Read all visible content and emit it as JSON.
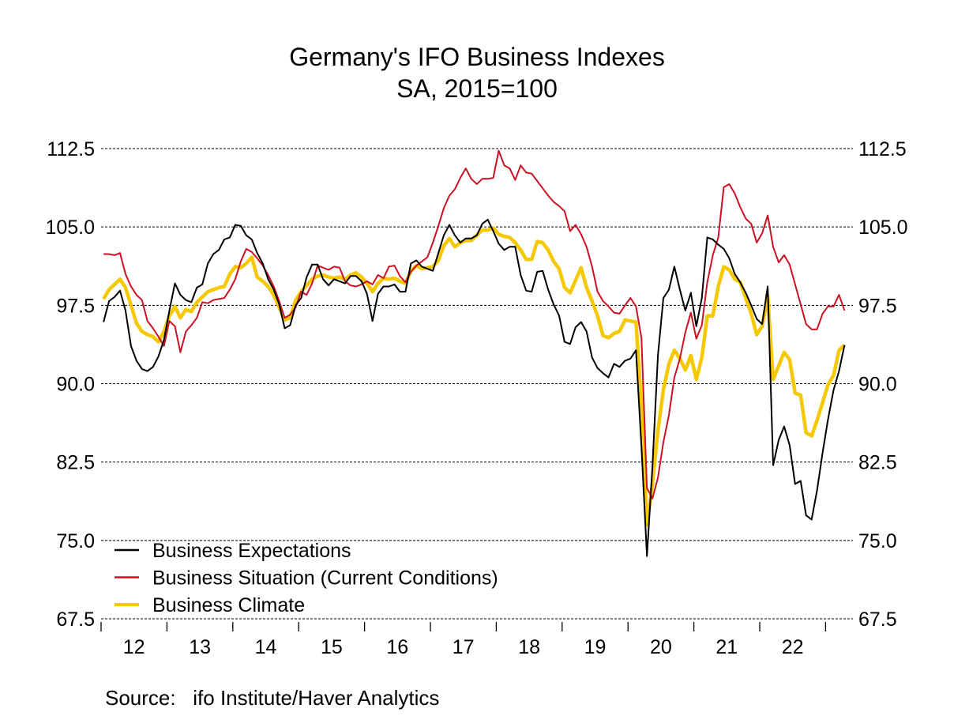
{
  "chart_data": {
    "type": "line",
    "title": "Germany's IFO Business Indexes",
    "subtitle": "SA, 2015=100",
    "xlabel": "",
    "ylabel": "",
    "x_start": "2012-01",
    "x_end": "2023-04",
    "frequency": "monthly",
    "x_tick_labels": [
      "12",
      "13",
      "14",
      "15",
      "16",
      "17",
      "18",
      "19",
      "20",
      "21",
      "22"
    ],
    "ylim": [
      67.5,
      112.5
    ],
    "y_ticks": [
      67.5,
      75.0,
      82.5,
      90.0,
      97.5,
      105.0,
      112.5
    ],
    "y_tick_labels": [
      "67.5",
      "75.0",
      "82.5",
      "90.0",
      "97.5",
      "105.0",
      "112.5"
    ],
    "grid": true,
    "legend_position": "bottom-left",
    "series": [
      {
        "name": "Business Expectations",
        "color": "#000000",
        "values": [
          95.9,
          97.9,
          98.3,
          98.9,
          97.0,
          93.6,
          92.2,
          91.4,
          91.2,
          91.6,
          92.6,
          94.2,
          97.0,
          99.6,
          98.5,
          98.0,
          97.8,
          99.2,
          99.5,
          101.5,
          102.4,
          102.8,
          103.8,
          104.0,
          105.2,
          105.1,
          104.2,
          103.8,
          102.5,
          101.5,
          100.0,
          99.0,
          97.6,
          95.3,
          95.6,
          97.5,
          98.2,
          100.2,
          101.4,
          101.4,
          100.0,
          99.4,
          100.0,
          99.8,
          99.6,
          100.3,
          100.3,
          99.8,
          98.6,
          96.0,
          98.6,
          99.3,
          99.3,
          99.5,
          98.8,
          98.8,
          101.5,
          101.8,
          101.2,
          101.0,
          100.8,
          102.5,
          104.2,
          105.2,
          104.2,
          103.5,
          103.9,
          103.9,
          104.2,
          105.3,
          105.7,
          104.6,
          103.4,
          102.8,
          103.1,
          103.1,
          100.4,
          98.9,
          98.8,
          100.7,
          100.8,
          99.0,
          97.6,
          96.5,
          94.0,
          93.8,
          95.4,
          95.9,
          95.0,
          92.5,
          91.5,
          91.0,
          90.6,
          91.9,
          91.6,
          92.2,
          92.4,
          93.2,
          84.0,
          73.5,
          82.0,
          92.7,
          98.2,
          99.0,
          101.2,
          99.0,
          97.0,
          98.7,
          95.5,
          98.2,
          104.0,
          103.8,
          103.3,
          102.9,
          102.0,
          100.5,
          99.7,
          98.7,
          97.5,
          96.2,
          95.7,
          99.3,
          82.2,
          84.6,
          85.9,
          84.1,
          80.4,
          80.7,
          77.4,
          77.0,
          79.8,
          83.4,
          86.6,
          89.4,
          91.2,
          93.7
        ]
      },
      {
        "name": "Business Situation (Current Conditions)",
        "color": "#cc1122",
        "values": [
          102.4,
          102.4,
          102.3,
          102.5,
          100.5,
          99.3,
          98.5,
          98.0,
          96.0,
          95.3,
          94.5,
          93.6,
          96.0,
          95.5,
          93.0,
          95.0,
          95.6,
          96.3,
          97.8,
          97.7,
          98.0,
          98.1,
          98.2,
          99.0,
          100.0,
          101.7,
          102.9,
          102.6,
          102.0,
          101.3,
          100.4,
          99.3,
          97.9,
          96.3,
          96.6,
          97.3,
          98.8,
          98.5,
          99.6,
          101.3,
          101.1,
          100.9,
          101.2,
          101.1,
          99.8,
          99.4,
          99.3,
          99.5,
          99.8,
          99.5,
          100.4,
          100.1,
          101.2,
          101.3,
          100.3,
          99.7,
          100.7,
          101.3,
          101.7,
          102.1,
          103.5,
          105.1,
          106.8,
          108.0,
          108.6,
          109.7,
          110.6,
          109.6,
          109.1,
          109.6,
          109.6,
          109.7,
          112.3,
          110.9,
          110.6,
          109.5,
          110.9,
          110.2,
          110.1,
          109.4,
          108.7,
          108.0,
          107.4,
          107.0,
          106.5,
          104.6,
          105.2,
          104.3,
          103.1,
          101.2,
          98.8,
          97.9,
          97.4,
          96.8,
          96.7,
          97.5,
          98.2,
          97.4,
          94.4,
          80.0,
          79.0,
          81.0,
          84.4,
          87.0,
          90.6,
          92.4,
          94.9,
          96.8,
          94.3,
          95.6,
          99.7,
          102.3,
          104.0,
          108.8,
          109.1,
          108.2,
          106.9,
          105.8,
          105.3,
          103.5,
          104.4,
          106.1,
          103.1,
          101.6,
          102.3,
          101.4,
          99.5,
          97.6,
          95.7,
          95.2,
          95.2,
          96.7,
          97.4,
          97.4,
          98.5,
          97.0
        ]
      },
      {
        "name": "Business Climate",
        "color": "#f5c800",
        "values": [
          98.1,
          99.0,
          99.5,
          100.0,
          99.2,
          97.5,
          95.8,
          95.0,
          94.7,
          94.5,
          94.0,
          95.0,
          96.5,
          97.4,
          96.3,
          97.1,
          96.9,
          97.8,
          98.3,
          98.8,
          99.0,
          99.2,
          99.3,
          100.5,
          101.2,
          101.1,
          101.5,
          102.1,
          100.2,
          99.8,
          99.3,
          98.5,
          97.3,
          96.1,
          96.3,
          98.0,
          98.8,
          99.4,
          100.0,
          100.3,
          100.4,
          100.2,
          100.1,
          100.2,
          100.0,
          100.4,
          100.6,
          100.2,
          99.6,
          98.8,
          99.6,
          100.1,
          100.0,
          100.1,
          99.8,
          99.6,
          100.8,
          101.3,
          101.0,
          101.1,
          101.2,
          101.8,
          103.2,
          103.9,
          103.1,
          103.5,
          103.7,
          103.7,
          104.2,
          104.7,
          104.7,
          104.9,
          104.3,
          104.1,
          104.0,
          103.5,
          102.8,
          101.9,
          101.9,
          103.6,
          103.5,
          102.8,
          101.7,
          101.0,
          99.2,
          98.7,
          99.9,
          101.1,
          99.2,
          97.9,
          96.5,
          94.6,
          94.4,
          94.8,
          95.0,
          96.1,
          96.0,
          95.9,
          88.0,
          76.5,
          80.4,
          85.5,
          89.4,
          91.9,
          93.2,
          92.4,
          91.3,
          92.7,
          90.4,
          92.5,
          96.5,
          96.5,
          99.3,
          101.2,
          100.9,
          100.0,
          99.7,
          98.2,
          96.7,
          94.7,
          95.5,
          98.4,
          90.4,
          91.7,
          93.0,
          92.3,
          89.1,
          88.9,
          85.3,
          85.0,
          86.5,
          88.2,
          89.9,
          90.8,
          93.2,
          93.7
        ]
      }
    ],
    "source": "Source:   ifo Institute/Haver Analytics"
  }
}
